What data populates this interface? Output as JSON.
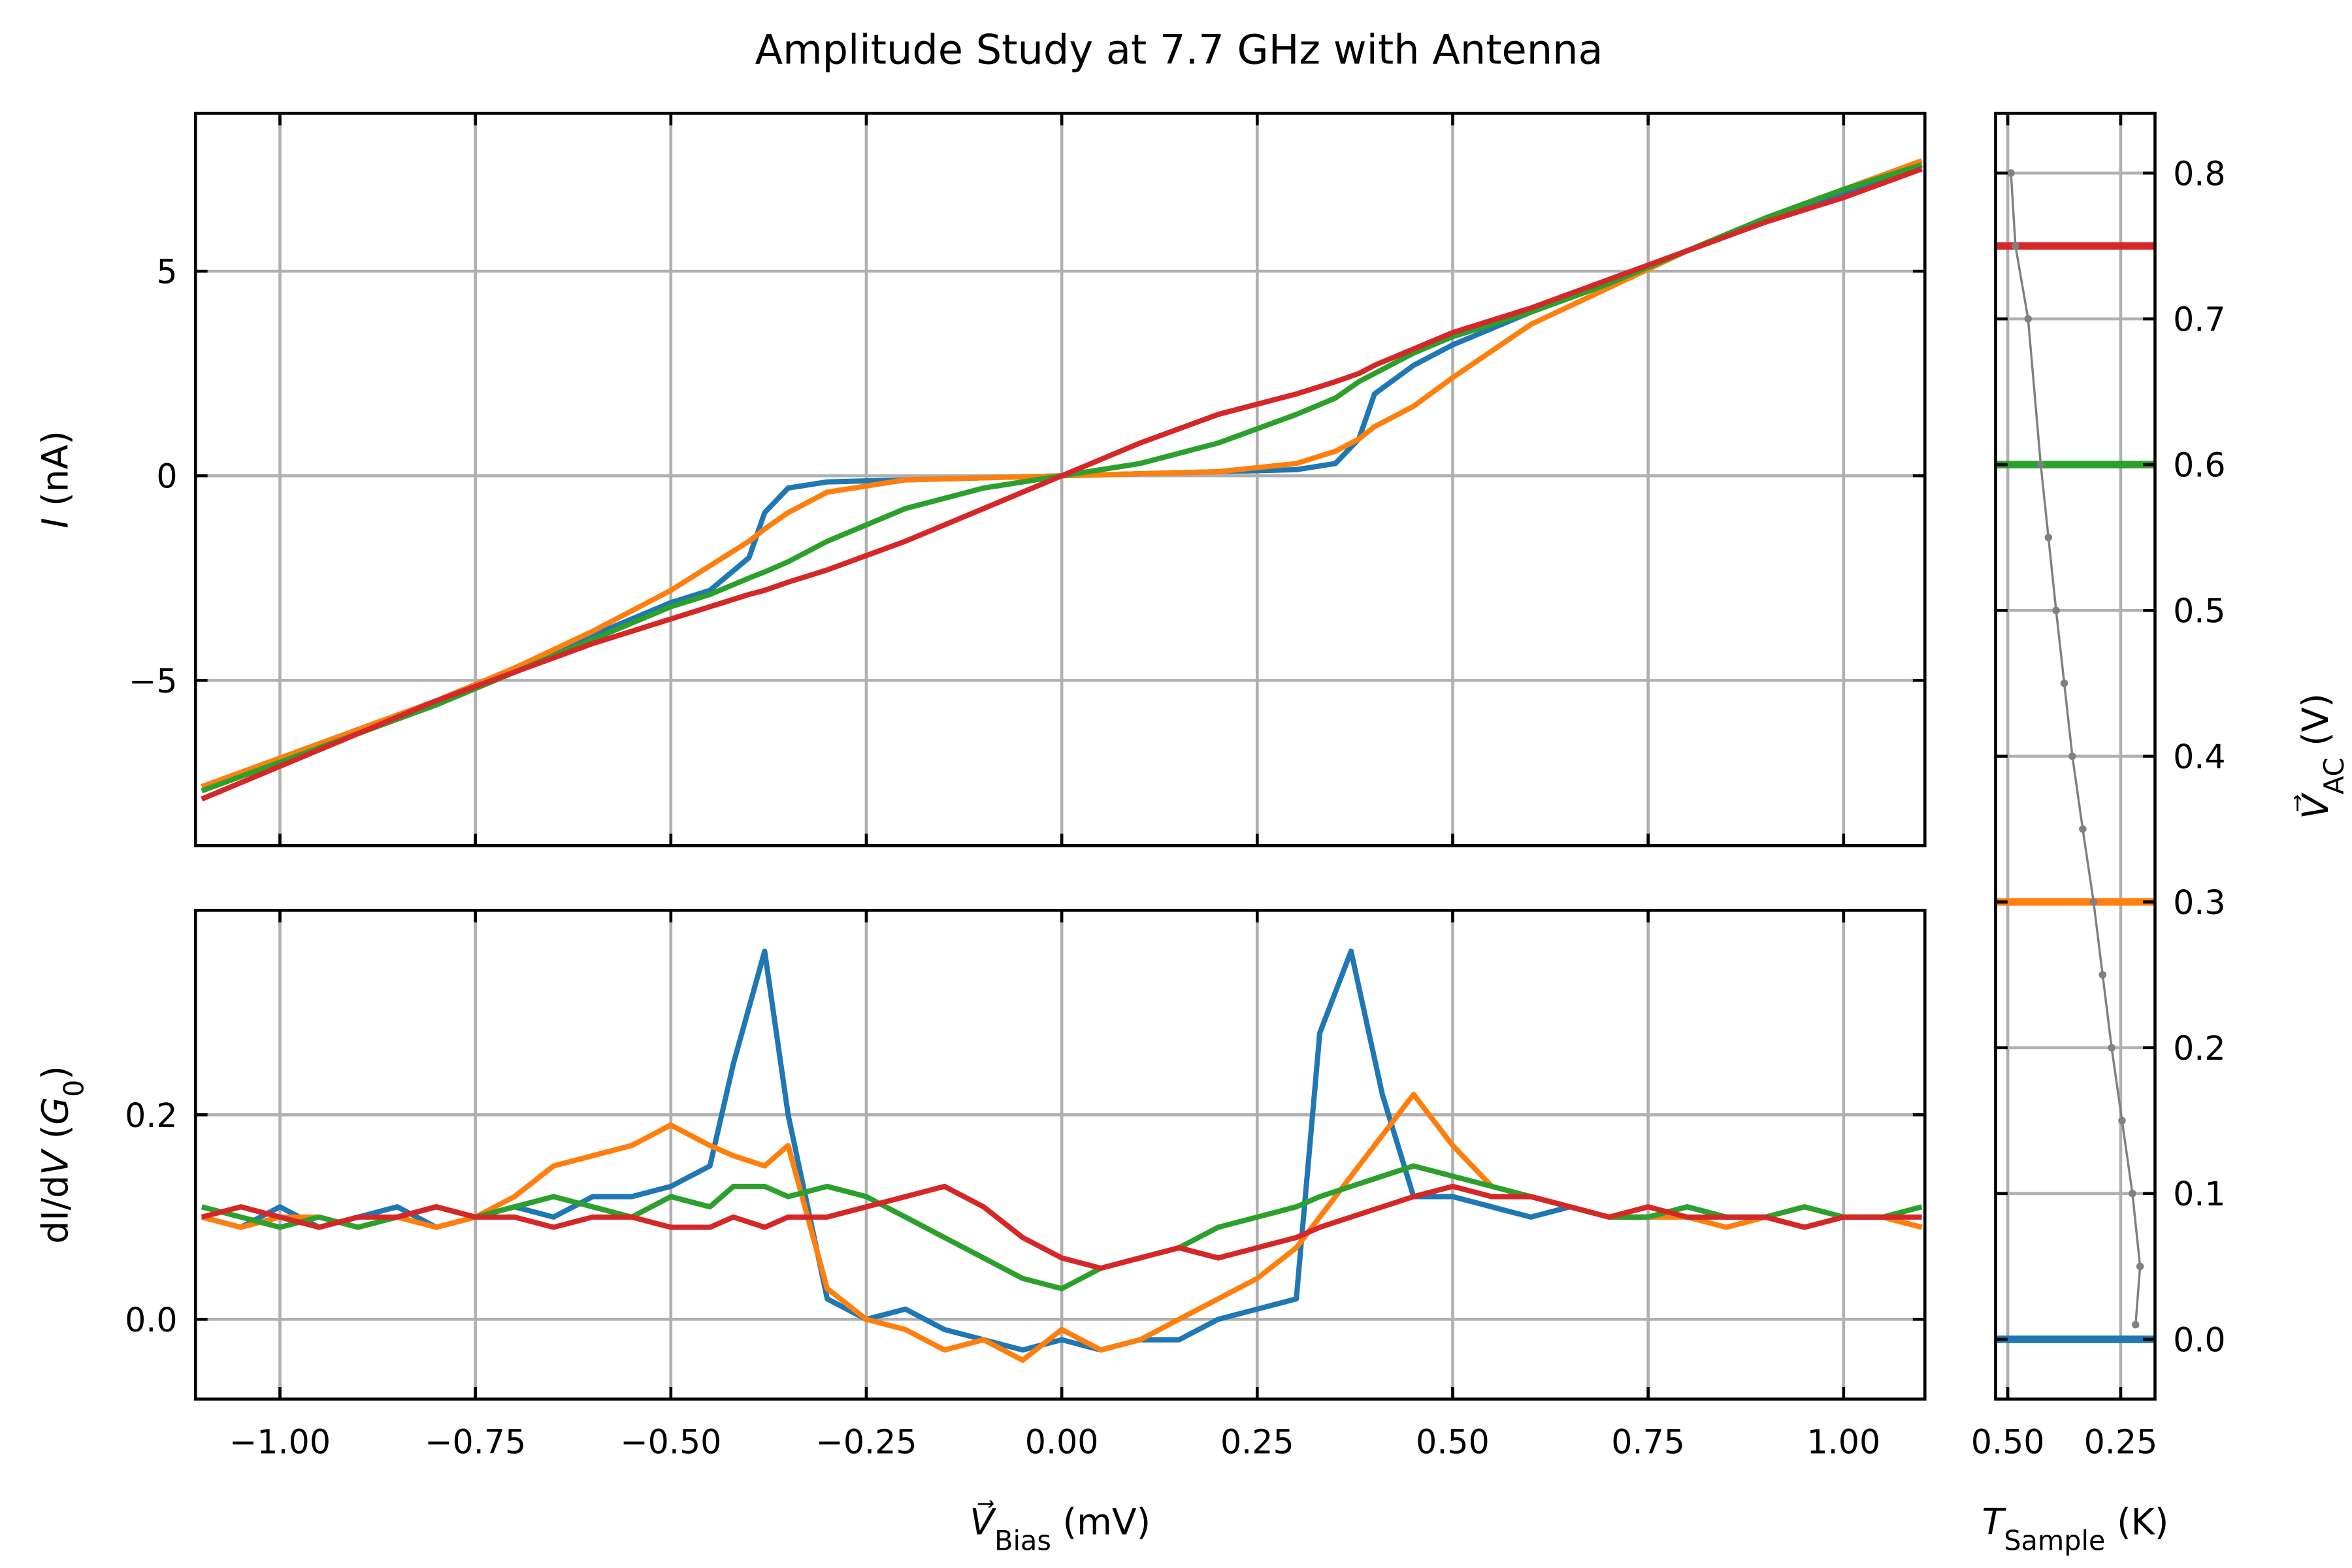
{
  "chart_data": [
    {
      "type": "line",
      "title": "Amplitude Study at 7.7 GHz with Antenna",
      "ylabel": [
        {
          "text": "I",
          "italic": true
        },
        {
          "text": " (nA)"
        }
      ],
      "x": [
        -1.1,
        -1.0,
        -0.9,
        -0.8,
        -0.7,
        -0.6,
        -0.5,
        -0.45,
        -0.4,
        -0.38,
        -0.35,
        -0.3,
        -0.2,
        -0.1,
        0,
        0.1,
        0.2,
        0.3,
        0.35,
        0.38,
        0.4,
        0.45,
        0.5,
        0.6,
        0.7,
        0.8,
        0.9,
        1.0,
        1.1
      ],
      "series": [
        {
          "color": "#1f77b4",
          "values": [
            -7.6,
            -6.9,
            -6.2,
            -5.5,
            -4.7,
            -3.9,
            -3.1,
            -2.8,
            -2.0,
            -0.9,
            -0.3,
            -0.15,
            -0.1,
            -0.05,
            0,
            0.05,
            0.1,
            0.15,
            0.3,
            0.9,
            2.0,
            2.7,
            3.2,
            4.0,
            4.7,
            5.5,
            6.2,
            6.9,
            7.6
          ]
        },
        {
          "color": "#ff7f0e",
          "values": [
            -7.6,
            -6.9,
            -6.2,
            -5.5,
            -4.7,
            -3.8,
            -2.8,
            -2.2,
            -1.6,
            -1.3,
            -0.9,
            -0.4,
            -0.1,
            -0.05,
            0,
            0.05,
            0.1,
            0.3,
            0.6,
            0.9,
            1.2,
            1.7,
            2.4,
            3.7,
            4.6,
            5.5,
            6.3,
            7.0,
            7.7
          ]
        },
        {
          "color": "#2ca02c",
          "values": [
            -7.7,
            -7.0,
            -6.3,
            -5.6,
            -4.8,
            -4.0,
            -3.2,
            -2.9,
            -2.5,
            -2.35,
            -2.1,
            -1.6,
            -0.8,
            -0.3,
            0,
            0.3,
            0.8,
            1.5,
            1.9,
            2.3,
            2.5,
            3.0,
            3.4,
            4.0,
            4.7,
            5.5,
            6.3,
            7.0,
            7.6
          ]
        },
        {
          "color": "#d62728",
          "values": [
            -7.9,
            -7.1,
            -6.3,
            -5.5,
            -4.8,
            -4.1,
            -3.5,
            -3.2,
            -2.9,
            -2.8,
            -2.6,
            -2.3,
            -1.6,
            -0.8,
            0,
            0.8,
            1.5,
            2.0,
            2.3,
            2.5,
            2.7,
            3.1,
            3.5,
            4.1,
            4.8,
            5.5,
            6.2,
            6.8,
            7.5
          ]
        }
      ],
      "xlim": [
        -1.108,
        1.104
      ],
      "xticks": [
        -1.0,
        -0.75,
        -0.5,
        -0.25,
        0,
        0.25,
        0.5,
        0.75,
        1.0
      ],
      "xticklabels": false,
      "ylim": [
        -9.04,
        8.86
      ],
      "yticks": [
        {
          "value": -5,
          "label": "−5"
        },
        0,
        5
      ],
      "grid": true
    },
    {
      "type": "line",
      "xlabel": [
        {
          "text": "V⃗",
          "italic": true
        },
        {
          "text": "Bias",
          "sub": true
        },
        {
          "text": " (mV)"
        }
      ],
      "ylabel": [
        {
          "text": "dI/d"
        },
        {
          "text": "V",
          "italic": true
        },
        {
          "text": " ("
        },
        {
          "text": "G",
          "italic": true
        },
        {
          "text": "0",
          "sub": true
        },
        {
          "text": ")"
        }
      ],
      "x": [
        -1.1,
        -1.05,
        -1.0,
        -0.95,
        -0.9,
        -0.85,
        -0.8,
        -0.75,
        -0.7,
        -0.65,
        -0.6,
        -0.55,
        -0.5,
        -0.45,
        -0.42,
        -0.38,
        -0.35,
        -0.3,
        -0.25,
        -0.2,
        -0.15,
        -0.1,
        -0.05,
        0,
        0.05,
        0.1,
        0.15,
        0.2,
        0.25,
        0.3,
        0.33,
        0.37,
        0.41,
        0.45,
        0.5,
        0.55,
        0.6,
        0.65,
        0.7,
        0.75,
        0.8,
        0.85,
        0.9,
        0.95,
        1.0,
        1.05,
        1.1
      ],
      "series": [
        {
          "color": "#1f77b4",
          "values": [
            0.1,
            0.09,
            0.11,
            0.09,
            0.1,
            0.11,
            0.09,
            0.1,
            0.11,
            0.1,
            0.12,
            0.12,
            0.13,
            0.15,
            0.25,
            0.36,
            0.2,
            0.02,
            0.0,
            0.01,
            -0.01,
            -0.02,
            -0.03,
            -0.02,
            -0.03,
            -0.02,
            -0.02,
            0.0,
            0.01,
            0.02,
            0.28,
            0.36,
            0.22,
            0.12,
            0.12,
            0.11,
            0.1,
            0.11,
            0.1,
            0.1,
            0.11,
            0.1,
            0.1,
            0.09,
            0.1,
            0.1,
            0.09
          ]
        },
        {
          "color": "#ff7f0e",
          "values": [
            0.1,
            0.09,
            0.1,
            0.1,
            0.09,
            0.1,
            0.09,
            0.1,
            0.12,
            0.15,
            0.16,
            0.17,
            0.19,
            0.17,
            0.16,
            0.15,
            0.17,
            0.03,
            0.0,
            -0.01,
            -0.03,
            -0.02,
            -0.04,
            -0.01,
            -0.03,
            -0.02,
            0.0,
            0.02,
            0.04,
            0.07,
            0.1,
            0.14,
            0.18,
            0.22,
            0.17,
            0.13,
            0.12,
            0.11,
            0.1,
            0.1,
            0.1,
            0.09,
            0.1,
            0.09,
            0.1,
            0.1,
            0.09
          ]
        },
        {
          "color": "#2ca02c",
          "values": [
            0.11,
            0.1,
            0.09,
            0.1,
            0.09,
            0.1,
            0.11,
            0.1,
            0.11,
            0.12,
            0.11,
            0.1,
            0.12,
            0.11,
            0.13,
            0.13,
            0.12,
            0.13,
            0.12,
            0.1,
            0.08,
            0.06,
            0.04,
            0.03,
            0.05,
            0.06,
            0.07,
            0.09,
            0.1,
            0.11,
            0.12,
            0.13,
            0.14,
            0.15,
            0.14,
            0.13,
            0.12,
            0.11,
            0.1,
            0.1,
            0.11,
            0.1,
            0.1,
            0.11,
            0.1,
            0.1,
            0.11
          ]
        },
        {
          "color": "#d62728",
          "values": [
            0.1,
            0.11,
            0.1,
            0.09,
            0.1,
            0.1,
            0.11,
            0.1,
            0.1,
            0.09,
            0.1,
            0.1,
            0.09,
            0.09,
            0.1,
            0.09,
            0.1,
            0.1,
            0.11,
            0.12,
            0.13,
            0.11,
            0.08,
            0.06,
            0.05,
            0.06,
            0.07,
            0.06,
            0.07,
            0.08,
            0.09,
            0.1,
            0.11,
            0.12,
            0.13,
            0.12,
            0.12,
            0.11,
            0.1,
            0.11,
            0.1,
            0.1,
            0.1,
            0.09,
            0.1,
            0.1,
            0.1
          ]
        }
      ],
      "xlim": [
        -1.108,
        1.104
      ],
      "xticks": [
        {
          "value": -1.0,
          "label": "−1.00"
        },
        {
          "value": -0.75,
          "label": "−0.75"
        },
        {
          "value": -0.5,
          "label": "−0.50"
        },
        {
          "value": -0.25,
          "label": "−0.25"
        },
        {
          "value": 0,
          "label": "0.00"
        },
        0.25,
        {
          "value": 0.5,
          "label": "0.50"
        },
        0.75,
        {
          "value": 1.0,
          "label": "1.00"
        }
      ],
      "ylim": [
        -0.078,
        0.4
      ],
      "yticks": [
        {
          "value": 0,
          "label": "0.0"
        },
        0.2
      ],
      "grid": true
    },
    {
      "type": "line",
      "markers": true,
      "color": "#808080",
      "xlabel": [
        {
          "text": "T",
          "italic": true
        },
        {
          "text": "Sample",
          "sub": true
        },
        {
          "text": " (K)"
        }
      ],
      "ylabel": [
        {
          "text": "V⃗",
          "italic": true
        },
        {
          "text": "AC",
          "sub": true
        },
        {
          "text": " (V)"
        }
      ],
      "x": [
        0.217,
        0.207,
        0.224,
        0.247,
        0.27,
        0.29,
        0.31,
        0.334,
        0.357,
        0.375,
        0.393,
        0.41,
        0.427,
        0.455,
        0.483,
        0.493
      ],
      "series": [
        {
          "values": [
            0.01,
            0.05,
            0.1,
            0.15,
            0.2,
            0.25,
            0.3,
            0.35,
            0.4,
            0.45,
            0.5,
            0.55,
            0.6,
            0.7,
            0.75,
            0.8
          ]
        }
      ],
      "hlines": [
        {
          "value": 0,
          "color": "#1f77b4"
        },
        {
          "value": 0.3,
          "color": "#ff7f0e"
        },
        {
          "value": 0.6,
          "color": "#2ca02c"
        },
        {
          "value": 0.75,
          "color": "#d62728"
        }
      ],
      "xlim": [
        0.527,
        0.174
      ],
      "xticks": [
        {
          "value": 0.5,
          "label": "0.50"
        },
        0.25
      ],
      "ylim": [
        -0.041,
        0.841
      ],
      "yticks": [
        {
          "value": 0,
          "label": "0.0"
        },
        0.1,
        0.2,
        0.3,
        0.4,
        0.5,
        0.6,
        0.7,
        0.8
      ],
      "ytick_side": "right",
      "grid": true
    }
  ]
}
